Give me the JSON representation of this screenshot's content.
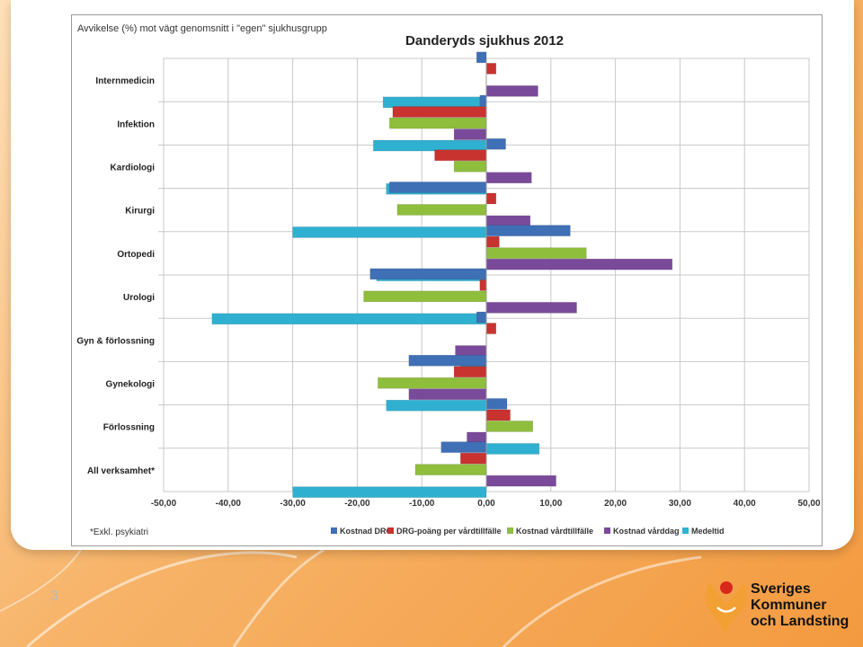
{
  "slide": {
    "number": "3"
  },
  "logo": {
    "lines": [
      "Sveriges",
      "Kommuner",
      "och Landsting"
    ]
  },
  "colors": {
    "Kostnad DRG": "#3f6fb5",
    "DRG-poäng per vårdtillfälle": "#c8322f",
    "Kostnad vårdtillfälle": "#8fbd3c",
    "Kostnad vårddag": "#7a4a9a",
    "Medeltid": "#2fb0d0"
  },
  "chart_data": {
    "type": "bar",
    "orientation": "horizontal",
    "title": "Danderyds sjukhus 2012",
    "subtitle": "Avvikelse (%) mot vägt genomsnitt i \"egen\" sjukhusgrupp",
    "footnote": "*Exkl. psykiatri",
    "xlim": [
      -50,
      50
    ],
    "x_ticks": [
      "-50,00",
      "-40,00",
      "-30,00",
      "-20,00",
      "-10,00",
      "0,00",
      "10,00",
      "20,00",
      "30,00",
      "40,00",
      "50,00"
    ],
    "grid": true,
    "legend_position": "bottom",
    "categories": [
      "Internmedicin",
      "Infektion",
      "Kardiologi",
      "Kirurgi",
      "Ortopedi",
      "Urologi",
      "Gyn & förlossning",
      "Gynekologi",
      "Förlossning",
      "All verksamhet*"
    ],
    "series": [
      {
        "name": "Kostnad DRG",
        "values": [
          -1.5,
          -1.0,
          3.0,
          -15.0,
          13.0,
          -18.0,
          -1.5,
          -12.0,
          3.2,
          -7.0
        ]
      },
      {
        "name": "DRG-poäng per vårdtillfälle",
        "values": [
          1.5,
          -14.5,
          -8.0,
          1.5,
          2.0,
          -1.0,
          1.5,
          -5.0,
          3.7,
          -4.0
        ]
      },
      {
        "name": "Kostnad vårdtillfälle",
        "values": [
          0,
          -15.0,
          -5.0,
          -13.8,
          15.5,
          -19.0,
          0,
          -16.8,
          7.2,
          -11.0
        ]
      },
      {
        "name": "Kostnad vårddag",
        "values": [
          8.0,
          -5.0,
          7.0,
          6.8,
          28.8,
          14.0,
          -4.8,
          -12.0,
          -3.0,
          10.8
        ]
      },
      {
        "name": "Medeltid",
        "values": [
          -16.0,
          -17.5,
          -15.5,
          -30.0,
          -17.0,
          -42.5,
          -4.0,
          -15.5,
          8.2,
          -30.0
        ]
      }
    ]
  }
}
